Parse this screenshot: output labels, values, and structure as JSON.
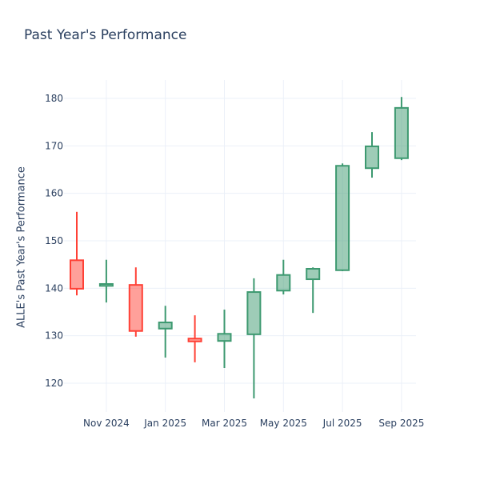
{
  "chart_data": {
    "type": "candlestick",
    "title": "Past Year's Performance",
    "xlabel": "",
    "ylabel": "ALLE's Past Year's Performance",
    "ylim": [
      113.5,
      184
    ],
    "yticks": [
      120,
      130,
      140,
      150,
      160,
      170,
      180
    ],
    "xtick_labels": [
      {
        "index": 1,
        "label": "Nov 2024"
      },
      {
        "index": 3,
        "label": "Jan 2025"
      },
      {
        "index": 5,
        "label": "Mar 2025"
      },
      {
        "index": 7,
        "label": "May 2025"
      },
      {
        "index": 9,
        "label": "Jul 2025"
      },
      {
        "index": 11,
        "label": "Sep 2025"
      }
    ],
    "increasing_color": "#3d9970",
    "decreasing_color": "#ff4136",
    "grid": true,
    "candles": [
      {
        "month": "Oct 2024",
        "open": 145.9,
        "high": 156.1,
        "low": 138.5,
        "close": 139.9
      },
      {
        "month": "Nov 2024",
        "open": 140.5,
        "high": 146.0,
        "low": 137.0,
        "close": 140.9
      },
      {
        "month": "Dec 2024",
        "open": 140.7,
        "high": 144.4,
        "low": 129.8,
        "close": 131.0
      },
      {
        "month": "Jan 2025",
        "open": 131.5,
        "high": 136.3,
        "low": 125.4,
        "close": 132.8
      },
      {
        "month": "Feb 2025",
        "open": 129.4,
        "high": 134.3,
        "low": 124.4,
        "close": 128.8
      },
      {
        "month": "Mar 2025",
        "open": 128.9,
        "high": 135.5,
        "low": 123.2,
        "close": 130.4
      },
      {
        "month": "Apr 2025",
        "open": 130.3,
        "high": 142.1,
        "low": 116.8,
        "close": 139.2
      },
      {
        "month": "May 2025",
        "open": 139.5,
        "high": 146.0,
        "low": 138.7,
        "close": 142.8
      },
      {
        "month": "Jun 2025",
        "open": 141.9,
        "high": 144.4,
        "low": 134.8,
        "close": 144.1
      },
      {
        "month": "Jul 2025",
        "open": 143.8,
        "high": 166.3,
        "low": 143.6,
        "close": 165.8
      },
      {
        "month": "Aug 2025",
        "open": 165.3,
        "high": 172.9,
        "low": 163.3,
        "close": 169.9
      },
      {
        "month": "Sep 2025",
        "open": 167.4,
        "high": 180.3,
        "low": 167.0,
        "close": 178.0
      }
    ]
  }
}
